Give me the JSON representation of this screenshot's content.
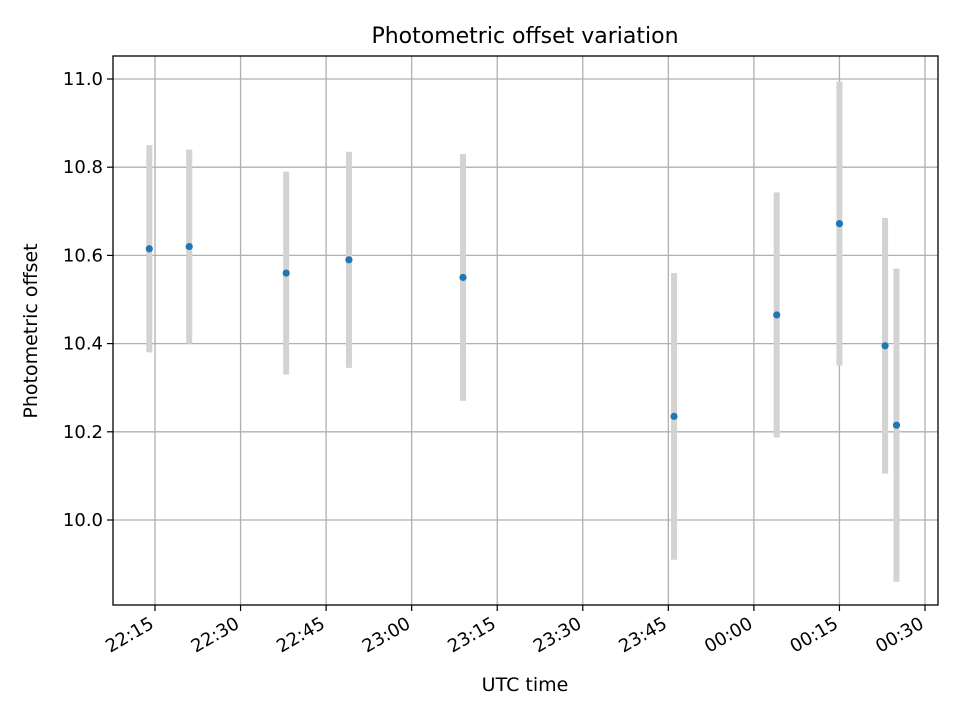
{
  "chart_data": {
    "type": "scatter",
    "title": "Photometric offset variation",
    "xlabel": "UTC time",
    "ylabel": "Photometric offset",
    "x_tick_labels": [
      "22:15",
      "22:30",
      "22:45",
      "23:00",
      "23:15",
      "23:30",
      "23:45",
      "00:00",
      "00:15",
      "00:30"
    ],
    "y_tick_labels": [
      "10.0",
      "10.2",
      "10.4",
      "10.6",
      "10.8",
      "11.0"
    ],
    "grid": true,
    "point_color": "#1f77b4",
    "errorbar_color": "#d3d3d3",
    "series": [
      {
        "x": [
          "22:14",
          "22:21",
          "22:38",
          "22:49",
          "23:09",
          "23:46",
          "00:04",
          "00:15",
          "00:23",
          "00:25"
        ],
        "y": [
          10.615,
          10.62,
          10.56,
          10.59,
          10.55,
          10.235,
          10.465,
          10.672,
          10.395,
          10.215
        ],
        "yerr": [
          0.235,
          0.22,
          0.23,
          0.245,
          0.28,
          0.325,
          0.278,
          0.322,
          0.29,
          0.355
        ]
      }
    ]
  }
}
